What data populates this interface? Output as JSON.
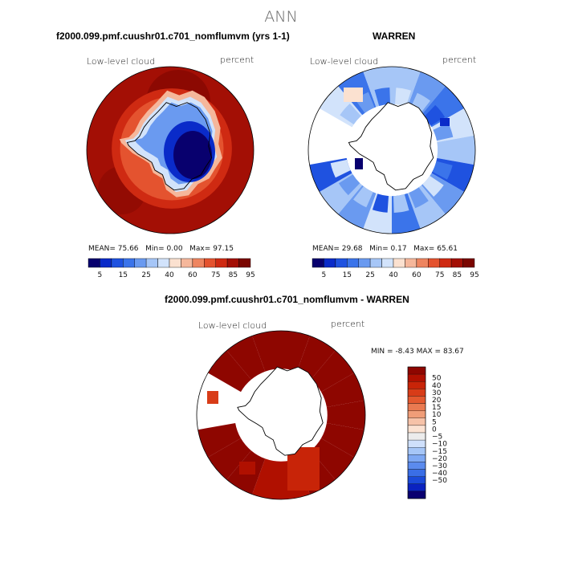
{
  "page_title": "ANN",
  "colors": {
    "abs_scale": [
      "#08006e",
      "#0a2bc9",
      "#1f52e0",
      "#3b74ea",
      "#6a9af0",
      "#a6c6f7",
      "#d2e3fb",
      "#fbe1d0",
      "#f5b79b",
      "#ee8560",
      "#e4532f",
      "#cf2a12",
      "#a30f05",
      "#7a0500"
    ],
    "diff_scale": [
      "#0a0070",
      "#0a22c0",
      "#1b4ad9",
      "#3a6ee6",
      "#5b8bee",
      "#7ea8f3",
      "#a6c6f7",
      "#cfe0fb",
      "#ececec",
      "#fbe2d2",
      "#f6c2a8",
      "#f09d78",
      "#ea7a51",
      "#e4592f",
      "#d83c18",
      "#c82408",
      "#b01000",
      "#8e0600"
    ],
    "antarctica_outline": "#000000"
  },
  "chart_data": [
    {
      "type": "heatmap",
      "projection": "south-polar-stereographic",
      "title": "f2000.099.pmf.cuushr01.c701_nomflumvm (yrs 1-1)",
      "left_label": "Low-level cloud",
      "right_label": "percent",
      "stats": {
        "mean_label": "MEAN=",
        "mean": "75.66",
        "min_label": "Min=",
        "min": "0.00",
        "max_label": "Max=",
        "max": "97.15"
      },
      "colorbar_ticks": [
        "5",
        "15",
        "25",
        "40",
        "60",
        "75",
        "85",
        "95"
      ],
      "field": {
        "open_ocean": 88,
        "near_coast": 55,
        "antarctic_interior": 3,
        "max": 97.15,
        "min": 0.0,
        "mean": 75.66
      }
    },
    {
      "type": "heatmap",
      "projection": "south-polar-stereographic",
      "title": "WARREN",
      "left_label": "Low-level cloud",
      "right_label": "percent",
      "stats": {
        "mean_label": "MEAN=",
        "mean": "29.68",
        "min_label": "Min=",
        "min": "0.17",
        "max_label": "Max=",
        "max": "65.61"
      },
      "colorbar_ticks": [
        "5",
        "15",
        "25",
        "40",
        "60",
        "75",
        "85",
        "95"
      ],
      "field": {
        "typical": 30,
        "max": 65.61,
        "min": 0.17,
        "mean": 29.68,
        "land": "missing"
      }
    },
    {
      "type": "heatmap",
      "projection": "south-polar-stereographic",
      "title": "f2000.099.pmf.cuushr01.c701_nomflumvm - WARREN",
      "left_label": "Low-level cloud",
      "right_label": "percent",
      "range_text": {
        "min_label": "MIN =",
        "min": "-8.43",
        "max_label": "MAX =",
        "max": "83.67"
      },
      "colorbar_ticks": [
        "50",
        "40",
        "30",
        "20",
        "15",
        "10",
        "5",
        "0",
        "−5",
        "−10",
        "−15",
        "−20",
        "−30",
        "−40",
        "−50"
      ],
      "field": {
        "typical": 55,
        "max": 83.67,
        "min": -8.43,
        "land": "missing"
      }
    }
  ]
}
